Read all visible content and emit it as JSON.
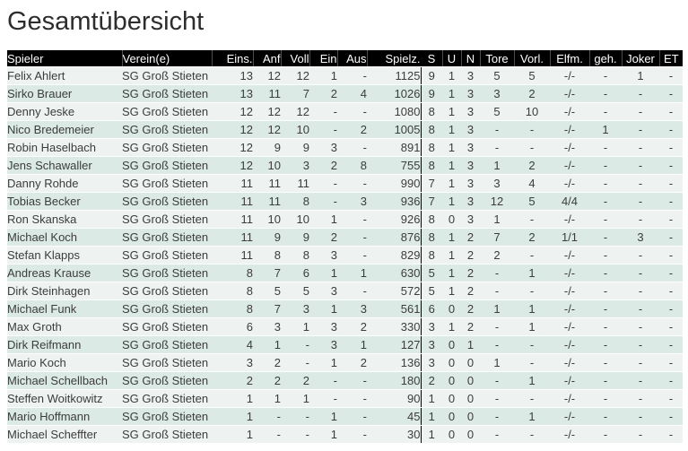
{
  "title": "Gesamtübersicht",
  "colors": {
    "header_bg": "#000000",
    "header_text": "#ffffff",
    "header_separator": "#4d4d4d",
    "row_odd": "#eef3f1",
    "row_even": "#dceae6",
    "body_text": "#3c3c3c",
    "section_divider": "#000000"
  },
  "table": {
    "columns": [
      "Spieler",
      "Verein(e)",
      "Eins.",
      "Anf",
      "Voll",
      "Ein",
      "Aus",
      "Spielz.",
      "S",
      "U",
      "N",
      "Tore",
      "Vorl.",
      "Elfm.",
      "geh.",
      "Joker",
      "ET"
    ],
    "rows": [
      [
        "Felix Ahlert",
        "SG Groß Stieten",
        "13",
        "12",
        "12",
        "1",
        "-",
        "1125",
        "9",
        "1",
        "3",
        "5",
        "5",
        "-/-",
        "-",
        "1",
        "-"
      ],
      [
        "Sirko Brauer",
        "SG Groß Stieten",
        "13",
        "11",
        "7",
        "2",
        "4",
        "1026",
        "9",
        "1",
        "3",
        "3",
        "2",
        "-/-",
        "-",
        "-",
        "-"
      ],
      [
        "Denny Jeske",
        "SG Groß Stieten",
        "12",
        "12",
        "12",
        "-",
        "-",
        "1080",
        "8",
        "1",
        "3",
        "5",
        "10",
        "-/-",
        "-",
        "-",
        "-"
      ],
      [
        "Nico Bredemeier",
        "SG Groß Stieten",
        "12",
        "12",
        "10",
        "-",
        "2",
        "1005",
        "8",
        "1",
        "3",
        "-",
        "-",
        "-/-",
        "1",
        "-",
        "-"
      ],
      [
        "Robin Haselbach",
        "SG Groß Stieten",
        "12",
        "9",
        "9",
        "3",
        "-",
        "891",
        "8",
        "1",
        "3",
        "-",
        "-",
        "-/-",
        "-",
        "-",
        "-"
      ],
      [
        "Jens Schawaller",
        "SG Groß Stieten",
        "12",
        "10",
        "3",
        "2",
        "8",
        "755",
        "8",
        "1",
        "3",
        "1",
        "2",
        "-/-",
        "-",
        "-",
        "-"
      ],
      [
        "Danny Rohde",
        "SG Groß Stieten",
        "11",
        "11",
        "11",
        "-",
        "-",
        "990",
        "7",
        "1",
        "3",
        "3",
        "4",
        "-/-",
        "-",
        "-",
        "-"
      ],
      [
        "Tobias Becker",
        "SG Groß Stieten",
        "11",
        "11",
        "8",
        "-",
        "3",
        "936",
        "7",
        "1",
        "3",
        "12",
        "5",
        "4/4",
        "-",
        "-",
        "-"
      ],
      [
        "Ron Skanska",
        "SG Groß Stieten",
        "11",
        "10",
        "10",
        "1",
        "-",
        "926",
        "8",
        "0",
        "3",
        "1",
        "-",
        "-/-",
        "-",
        "-",
        "-"
      ],
      [
        "Michael Koch",
        "SG Groß Stieten",
        "11",
        "9",
        "9",
        "2",
        "-",
        "876",
        "8",
        "1",
        "2",
        "7",
        "2",
        "1/1",
        "-",
        "3",
        "-"
      ],
      [
        "Stefan Klapps",
        "SG Groß Stieten",
        "11",
        "8",
        "8",
        "3",
        "-",
        "829",
        "8",
        "1",
        "2",
        "2",
        "-",
        "-/-",
        "-",
        "-",
        "-"
      ],
      [
        "Andreas Krause",
        "SG Groß Stieten",
        "8",
        "7",
        "6",
        "1",
        "1",
        "630",
        "5",
        "1",
        "2",
        "-",
        "1",
        "-/-",
        "-",
        "-",
        "-"
      ],
      [
        "Dirk Steinhagen",
        "SG Groß Stieten",
        "8",
        "5",
        "5",
        "3",
        "-",
        "572",
        "5",
        "1",
        "2",
        "-",
        "-",
        "-/-",
        "-",
        "-",
        "-"
      ],
      [
        "Michael Funk",
        "SG Groß Stieten",
        "8",
        "7",
        "3",
        "1",
        "3",
        "561",
        "6",
        "0",
        "2",
        "1",
        "1",
        "-/-",
        "-",
        "-",
        "-"
      ],
      [
        "Max Groth",
        "SG Groß Stieten",
        "6",
        "3",
        "1",
        "3",
        "2",
        "330",
        "3",
        "1",
        "2",
        "-",
        "1",
        "-/-",
        "-",
        "-",
        "-"
      ],
      [
        "Dirk Reifmann",
        "SG Groß Stieten",
        "4",
        "1",
        "-",
        "3",
        "1",
        "127",
        "3",
        "0",
        "1",
        "-",
        "-",
        "-/-",
        "-",
        "-",
        "-"
      ],
      [
        "Mario Koch",
        "SG Groß Stieten",
        "3",
        "2",
        "-",
        "1",
        "2",
        "136",
        "3",
        "0",
        "0",
        "1",
        "-",
        "-/-",
        "-",
        "-",
        "-"
      ],
      [
        "Michael Schellbach",
        "SG Groß Stieten",
        "2",
        "2",
        "2",
        "-",
        "-",
        "180",
        "2",
        "0",
        "0",
        "-",
        "1",
        "-/-",
        "-",
        "-",
        "-"
      ],
      [
        "Steffen Woitkowitz",
        "SG Groß Stieten",
        "1",
        "1",
        "1",
        "-",
        "-",
        "90",
        "1",
        "0",
        "0",
        "-",
        "-",
        "-/-",
        "-",
        "-",
        "-"
      ],
      [
        "Mario Hoffmann",
        "SG Groß Stieten",
        "1",
        "-",
        "-",
        "1",
        "-",
        "45",
        "1",
        "0",
        "0",
        "-",
        "1",
        "-/-",
        "-",
        "-",
        "-"
      ],
      [
        "Michael Scheffter",
        "SG Groß Stieten",
        "1",
        "-",
        "-",
        "1",
        "-",
        "30",
        "1",
        "0",
        "0",
        "-",
        "-",
        "-/-",
        "-",
        "-",
        "-"
      ]
    ]
  }
}
